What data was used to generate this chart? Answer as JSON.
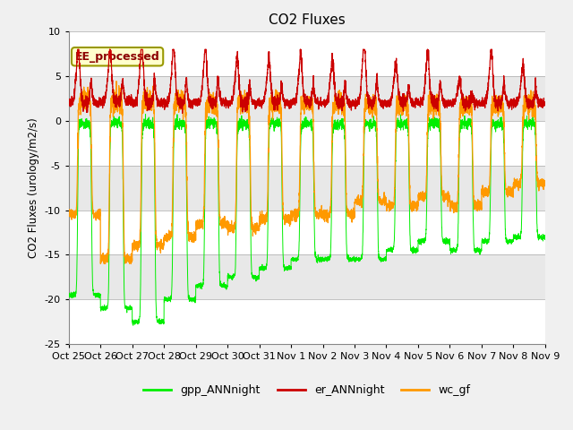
{
  "title": "CO2 Fluxes",
  "ylabel": "CO2 Fluxes (urology/m2/s)",
  "ylim": [
    -25,
    10
  ],
  "yticks": [
    -25,
    -20,
    -15,
    -10,
    -5,
    0,
    5,
    10
  ],
  "legend_entries": [
    "gpp_ANNnight",
    "er_ANNnight",
    "wc_gf"
  ],
  "legend_colors": [
    "#00ee00",
    "#cc0000",
    "#ff9900"
  ],
  "annotation_text": "EE_processed",
  "annotation_color": "#8B0000",
  "annotation_bg": "#ffffcc",
  "n_days": 15,
  "ppd": 288,
  "gpp_color": "#00ee00",
  "er_color": "#cc0000",
  "wc_color": "#ff9900",
  "xtick_labels": [
    "Oct 25",
    "Oct 26",
    "Oct 27",
    "Oct 28",
    "Oct 29",
    "Oct 30",
    "Oct 31",
    "Nov 1",
    "Nov 2",
    "Nov 3",
    "Nov 4",
    "Nov 5",
    "Nov 6",
    "Nov 7",
    "Nov 8",
    "Nov 9"
  ],
  "bg_color": "#ffffff",
  "fig_bg": "#f0f0f0",
  "band_colors": [
    "#ffffff",
    "#e8e8e8"
  ],
  "gpp_day_vals": [
    -0.3,
    -0.2,
    -0.3,
    -0.3,
    -0.2,
    -0.3,
    -0.2,
    -0.3,
    -0.4,
    -0.3,
    -0.3,
    -0.2,
    -0.2,
    -0.3,
    -0.2
  ],
  "gpp_night_vals": [
    -19.5,
    -21.0,
    -22.5,
    -20.0,
    -18.5,
    -17.5,
    -16.5,
    -15.5,
    -15.5,
    -15.5,
    -14.5,
    -13.5,
    -14.5,
    -13.5,
    -13.0
  ],
  "wc_day_vals": [
    2.5,
    2.2,
    2.3,
    2.2,
    2.0,
    2.0,
    2.0,
    2.0,
    2.0,
    1.8,
    1.8,
    1.8,
    1.8,
    1.8,
    1.8
  ],
  "wc_night_vals": [
    -10.5,
    -15.5,
    -14.0,
    -13.0,
    -11.5,
    -12.0,
    -11.0,
    -10.5,
    -10.5,
    -9.0,
    -9.5,
    -8.5,
    -9.5,
    -8.0,
    -7.0
  ],
  "er_day_vals": [
    2.0,
    2.2,
    2.0,
    2.0,
    2.0,
    2.0,
    2.0,
    2.0,
    2.0,
    2.0,
    2.0,
    2.0,
    2.0,
    2.0,
    2.0
  ],
  "er_peak_vals": [
    6.5,
    6.2,
    6.8,
    6.5,
    6.5,
    5.5,
    5.5,
    5.8,
    5.5,
    6.8,
    5.2,
    6.0,
    3.8,
    6.2,
    5.0
  ],
  "day_start": 0.28,
  "day_end": 0.72
}
